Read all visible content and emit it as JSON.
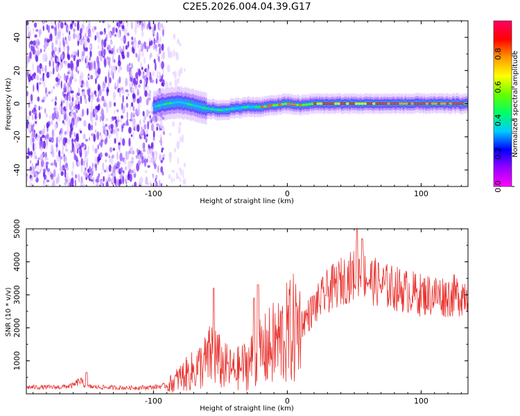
{
  "title": "C2E5.2026.004.04.39.G17",
  "chart_data": [
    {
      "type": "heatmap",
      "title": "C2E5.2026.004.04.39.G17",
      "xlabel": "Height of straight line (km)",
      "ylabel": "Frequency (Hz)",
      "xlim": [
        -195,
        135
      ],
      "ylim": [
        -50,
        50
      ],
      "x_ticks": [
        -100,
        0,
        100
      ],
      "x_tick_labels": [
        "-100",
        "0",
        "100"
      ],
      "y_ticks": [
        -40,
        -20,
        0,
        20,
        40
      ],
      "y_tick_labels": [
        "-40",
        "-20",
        "0",
        "20",
        "40"
      ],
      "colorbar": {
        "label": "Normalized spectral amplitude",
        "range": [
          0,
          1
        ],
        "ticks": [
          0.0,
          0.2,
          0.4,
          0.6,
          0.8
        ],
        "tick_labels": [
          "0.0",
          "0.2",
          "0.4",
          "0.6",
          "0.8"
        ],
        "stops": [
          "#ff00ff",
          "#9900ff",
          "#0000ff",
          "#00ccff",
          "#00ff66",
          "#66ff00",
          "#ffff00",
          "#ff9900",
          "#ff0000",
          "#ff0066"
        ]
      },
      "signal_track": {
        "description_points_x": [
          -100,
          -90,
          -80,
          -70,
          -60,
          -50,
          -40,
          -30,
          -20,
          -10,
          0,
          10,
          20,
          40,
          60,
          80,
          100,
          120,
          135
        ],
        "description_points_y": [
          -2,
          0,
          1,
          -1,
          -3,
          -4,
          -3,
          -2,
          -2,
          -1,
          0,
          -1,
          0,
          0,
          0,
          0,
          0,
          0,
          0
        ]
      },
      "noise_region_x": [
        -195,
        -92
      ]
    },
    {
      "type": "line",
      "xlabel": "Height of straight line (km)",
      "ylabel": "SNR (10 * v/v)",
      "xlim": [
        -195,
        135
      ],
      "ylim": [
        0,
        5000
      ],
      "x_ticks": [
        -100,
        0,
        100
      ],
      "x_tick_labels": [
        "-100",
        "0",
        "100"
      ],
      "y_ticks": [
        1000,
        2000,
        3000,
        4000,
        5000
      ],
      "y_tick_labels": [
        "1000",
        "2000",
        "3000",
        "4000",
        "5000"
      ],
      "series": [
        {
          "name": "SNR",
          "color": "#e8322e",
          "envelope_x": [
            -195,
            -170,
            -160,
            -155,
            -150,
            -140,
            -120,
            -100,
            -90,
            -85,
            -80,
            -70,
            -60,
            -55,
            -50,
            -40,
            -30,
            -20,
            -10,
            0,
            10,
            20,
            30,
            40,
            50,
            55,
            60,
            70,
            80,
            90,
            100,
            110,
            120,
            130,
            135
          ],
          "envelope_mean": [
            200,
            200,
            250,
            400,
            220,
            200,
            180,
            200,
            250,
            350,
            500,
            700,
            1000,
            1300,
            900,
            700,
            900,
            1200,
            1500,
            1800,
            2100,
            2600,
            3100,
            3400,
            3600,
            3800,
            3500,
            3300,
            3200,
            3100,
            3000,
            3000,
            2950,
            3000,
            3100
          ],
          "peaks_x": [
            -150,
            -55,
            -25,
            -22,
            52,
            56
          ],
          "peaks_y": [
            650,
            3200,
            2900,
            3300,
            5000,
            4700
          ]
        }
      ]
    }
  ]
}
